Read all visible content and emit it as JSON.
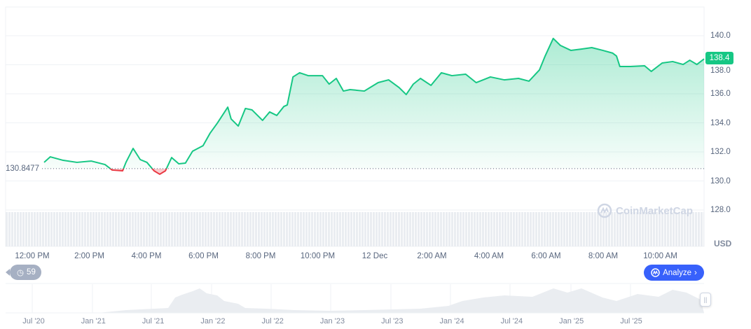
{
  "chart_data": {
    "type": "line",
    "currency_label": "USD",
    "current_price": "138.4",
    "baseline_price": "130.8477",
    "baseline_value": 130.8477,
    "ylim": [
      127.2,
      141.0
    ],
    "y_ticks": [
      "140.0",
      "138.0",
      "136.0",
      "134.0",
      "132.0",
      "130.0",
      "128.0"
    ],
    "x_ticks": [
      "12:00 PM",
      "2:00 PM",
      "4:00 PM",
      "6:00 PM",
      "8:00 PM",
      "10:00 PM",
      "12 Dec",
      "2:00 AM",
      "4:00 AM",
      "6:00 AM",
      "8:00 AM",
      "10:00 AM"
    ],
    "colors": {
      "up": "#16c784",
      "down": "#ea3943",
      "accent": "#3861fb"
    },
    "grid": true,
    "points": [
      [
        "12:25",
        131.28
      ],
      [
        "12:38",
        131.66
      ],
      [
        "13:05",
        131.42
      ],
      [
        "13:34",
        131.28
      ],
      [
        "14:04",
        131.37
      ],
      [
        "14:33",
        131.13
      ],
      [
        "14:48",
        130.75
      ],
      [
        "15:10",
        130.7
      ],
      [
        "15:17",
        131.28
      ],
      [
        "15:32",
        132.24
      ],
      [
        "15:47",
        131.47
      ],
      [
        "16:01",
        131.28
      ],
      [
        "16:16",
        130.7
      ],
      [
        "16:28",
        130.46
      ],
      [
        "16:40",
        130.7
      ],
      [
        "16:53",
        131.61
      ],
      [
        "17:08",
        131.18
      ],
      [
        "17:22",
        131.23
      ],
      [
        "17:37",
        132.05
      ],
      [
        "17:59",
        132.43
      ],
      [
        "18:14",
        133.3
      ],
      [
        "18:29",
        133.98
      ],
      [
        "18:51",
        135.08
      ],
      [
        "18:58",
        134.27
      ],
      [
        "19:13",
        133.78
      ],
      [
        "19:28",
        134.99
      ],
      [
        "19:42",
        134.89
      ],
      [
        "20:04",
        134.17
      ],
      [
        "20:19",
        134.75
      ],
      [
        "20:34",
        134.51
      ],
      [
        "20:49",
        135.13
      ],
      [
        "20:56",
        135.23
      ],
      [
        "21:08",
        137.16
      ],
      [
        "21:22",
        137.45
      ],
      [
        "21:40",
        137.25
      ],
      [
        "22:10",
        137.25
      ],
      [
        "22:24",
        136.67
      ],
      [
        "22:39",
        137.06
      ],
      [
        "22:54",
        136.19
      ],
      [
        "23:08",
        136.29
      ],
      [
        "23:38",
        136.19
      ],
      [
        "00:07",
        136.77
      ],
      [
        "00:29",
        136.96
      ],
      [
        "00:51",
        136.43
      ],
      [
        "01:06",
        135.95
      ],
      [
        "01:21",
        136.67
      ],
      [
        "01:36",
        137.06
      ],
      [
        "01:58",
        136.58
      ],
      [
        "02:20",
        137.45
      ],
      [
        "02:42",
        137.25
      ],
      [
        "03:11",
        137.35
      ],
      [
        "03:33",
        136.77
      ],
      [
        "04:03",
        137.16
      ],
      [
        "04:32",
        136.96
      ],
      [
        "05:02",
        137.06
      ],
      [
        "05:24",
        136.87
      ],
      [
        "05:46",
        137.64
      ],
      [
        "05:58",
        138.6
      ],
      [
        "06:15",
        139.81
      ],
      [
        "06:30",
        139.33
      ],
      [
        "06:52",
        138.99
      ],
      [
        "07:14",
        139.08
      ],
      [
        "07:36",
        139.18
      ],
      [
        "07:59",
        138.99
      ],
      [
        "08:20",
        138.8
      ],
      [
        "08:28",
        138.6
      ],
      [
        "08:35",
        137.88
      ],
      [
        "08:57",
        137.88
      ],
      [
        "09:27",
        137.93
      ],
      [
        "09:41",
        137.54
      ],
      [
        "10:04",
        138.12
      ],
      [
        "10:26",
        138.22
      ],
      [
        "10:48",
        138.02
      ],
      [
        "11:02",
        138.31
      ],
      [
        "11:17",
        138.02
      ],
      [
        "11:32",
        138.4
      ]
    ]
  },
  "navigator": {
    "x_ticks": [
      "Jul '20",
      "Jan '21",
      "Jul '21",
      "Jan '22",
      "Jul '22",
      "Jan '23",
      "Jul '23",
      "Jan '24",
      "Jul '24",
      "Jan '25",
      "Jul '25"
    ]
  },
  "history_badge": {
    "count": "59",
    "icon": "history-clock-icon"
  },
  "analyze_button": {
    "label": "Analyze",
    "icon": "coinmarketcap-logo-icon"
  },
  "watermark": "CoinMarketCap"
}
